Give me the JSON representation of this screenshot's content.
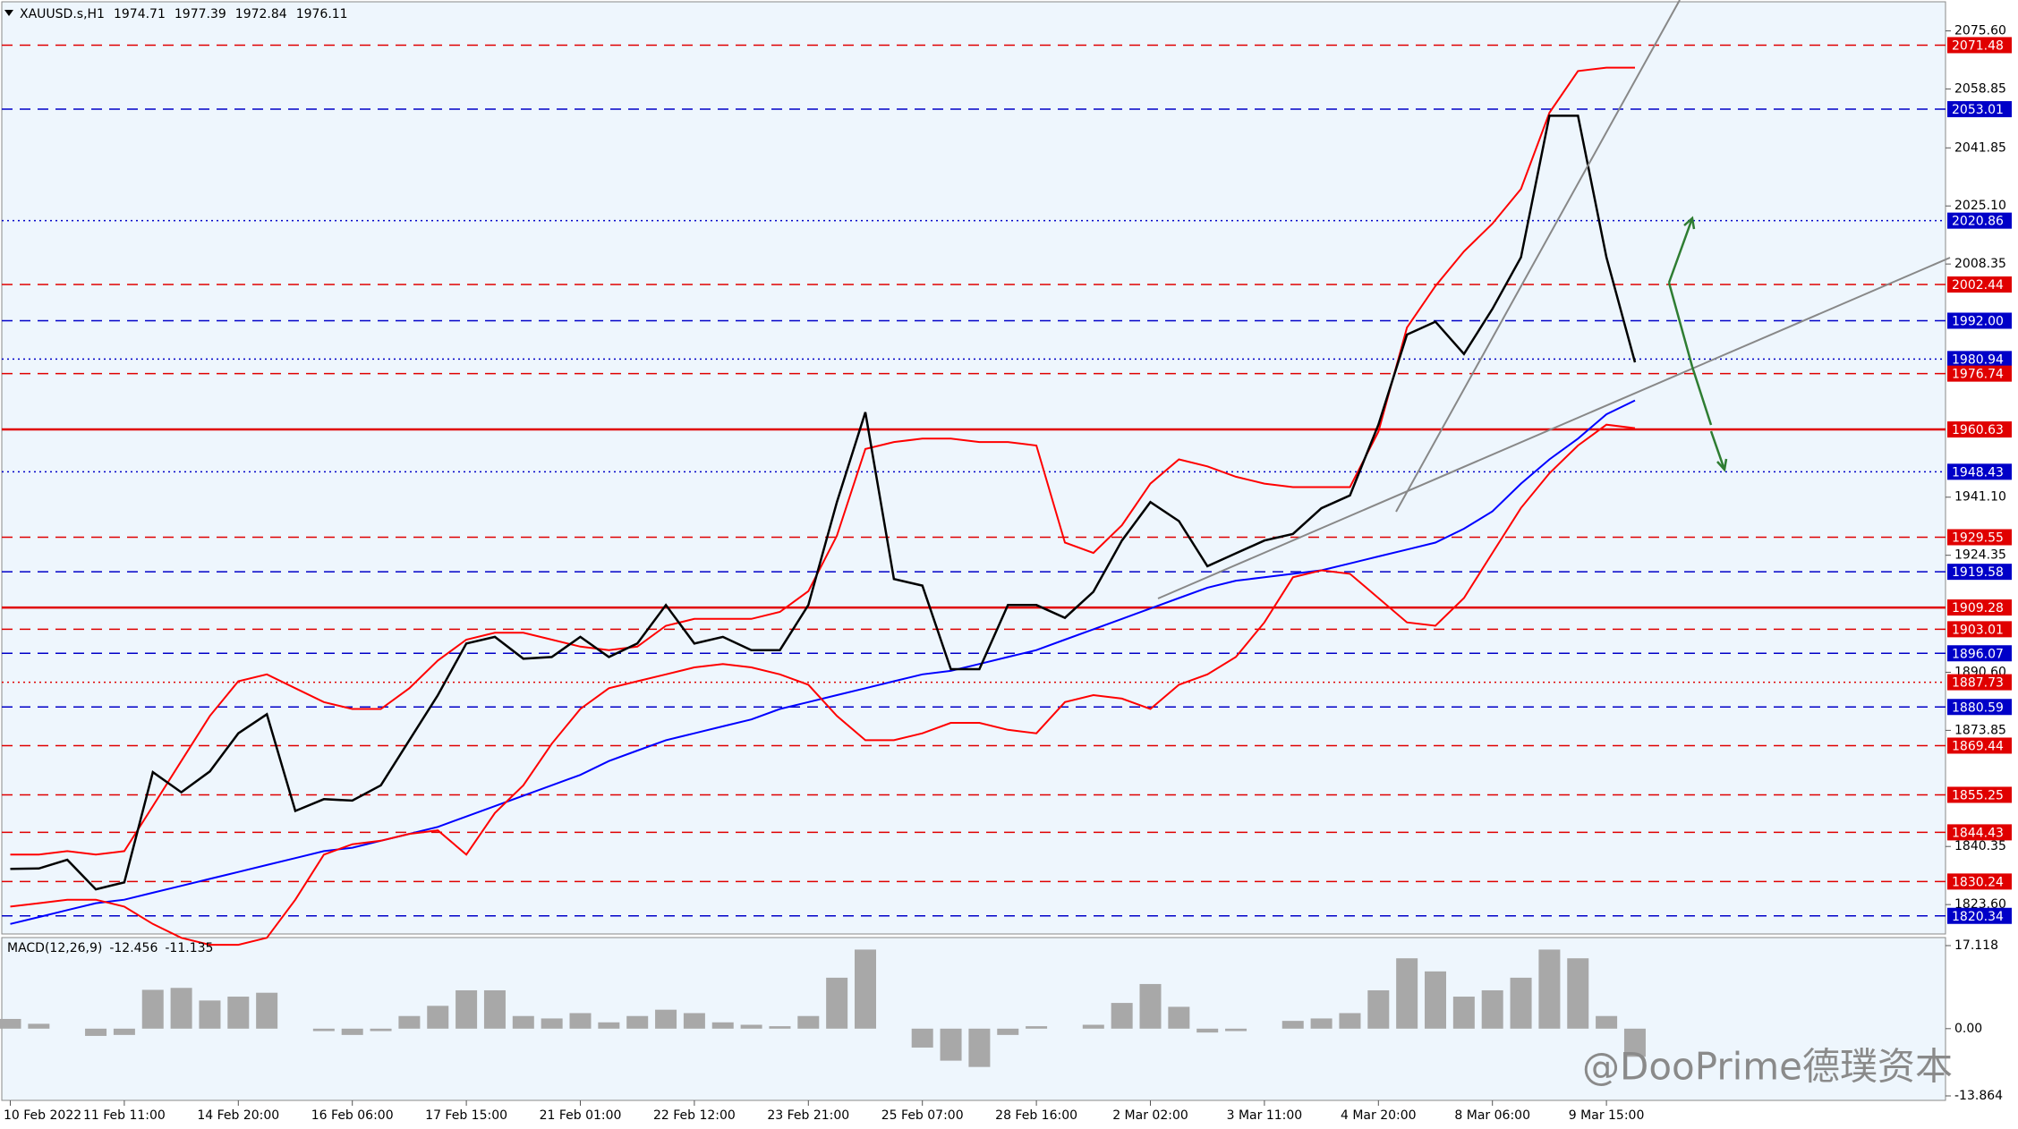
{
  "chart_data": [
    {
      "type": "line",
      "title": "XAUUSD.s,H1",
      "ohlc": [
        1974.71,
        1977.39,
        1972.84,
        1976.11
      ],
      "ylim": [
        1814.6,
        2084.5
      ],
      "yticks": [
        {
          "value": 2075.6,
          "label": "2075.60"
        },
        2058.85,
        2041.85,
        {
          "value": 2025.1,
          "label": "2025.10"
        },
        2008.35,
        {
          "value": 1941.1,
          "label": "1941.10"
        },
        1924.35,
        {
          "value": 1890.6,
          "label": "1890.60"
        },
        1873.85,
        1840.35,
        {
          "value": 1823.6,
          "label": "1823.60"
        }
      ],
      "levels": [
        {
          "value": 2071.48,
          "color": "#e00000",
          "style": "dashed"
        },
        {
          "value": 2053.01,
          "color": "#0000c8",
          "style": "dashed"
        },
        {
          "value": 2020.86,
          "color": "#0000c8",
          "style": "dotted"
        },
        {
          "value": 2002.44,
          "color": "#e00000",
          "style": "dashed"
        },
        {
          "value": 1992,
          "label": "1992.00",
          "color": "#0000c8",
          "style": "dashed"
        },
        {
          "value": 1980.94,
          "color": "#0000c8",
          "style": "dotted"
        },
        {
          "value": 1976.74,
          "color": "#e00000",
          "style": "dashed"
        },
        {
          "value": 1960.63,
          "color": "#e00000",
          "style": "solid"
        },
        {
          "value": 1948.43,
          "color": "#0000c8",
          "style": "dotted"
        },
        {
          "value": 1929.55,
          "color": "#e00000",
          "style": "dashed"
        },
        {
          "value": 1919.58,
          "color": "#0000c8",
          "style": "dashed"
        },
        {
          "value": 1909.28,
          "color": "#e00000",
          "style": "solid"
        },
        {
          "value": 1903.01,
          "color": "#e00000",
          "style": "dashed"
        },
        {
          "value": 1896.07,
          "color": "#0000c8",
          "style": "dashed"
        },
        {
          "value": 1887.73,
          "color": "#e00000",
          "style": "dotted"
        },
        {
          "value": 1880.59,
          "color": "#0000c8",
          "style": "dashed"
        },
        {
          "value": 1869.44,
          "color": "#e00000",
          "style": "dashed"
        },
        {
          "value": 1855.25,
          "color": "#e00000",
          "style": "dashed"
        },
        {
          "value": 1844.43,
          "color": "#e00000",
          "style": "dashed"
        },
        {
          "value": 1830.24,
          "color": "#e00000",
          "style": "dashed"
        },
        {
          "value": 1820.34,
          "color": "#0000c8",
          "style": "dashed"
        }
      ],
      "series": [
        {
          "color": "#0000ff",
          "values": [
            1818,
            1820,
            1822,
            1824,
            1825,
            1827,
            1829,
            1831,
            1833,
            1835,
            1837,
            1839,
            1840,
            1842,
            1844,
            1846,
            1849,
            1852,
            1855,
            1858,
            1861,
            1865,
            1868,
            1871,
            1873,
            1875,
            1877,
            1880,
            1882,
            1884,
            1886,
            1888,
            1890,
            1891,
            1893,
            1895,
            1897,
            1900,
            1903,
            1906,
            1909,
            1912,
            1915,
            1917,
            1918,
            1919,
            1920,
            1922,
            1924,
            1926,
            1928,
            1932,
            1937,
            1945,
            1952,
            1958,
            1965,
            1969
          ]
        },
        {
          "color": "#ff0000",
          "values": [
            1838,
            1838,
            1839,
            1838,
            1839,
            1852,
            1865,
            1878,
            1888,
            1890,
            1886,
            1882,
            1880,
            1880,
            1886,
            1894,
            1900,
            1902,
            1902,
            1900,
            1898,
            1897,
            1898,
            1904,
            1906,
            1906,
            1906,
            1908,
            1914,
            1930,
            1955,
            1957,
            1958,
            1958,
            1957,
            1957,
            1956,
            1928,
            1925,
            1933,
            1945,
            1952,
            1950,
            1947,
            1945,
            1944,
            1944,
            1944,
            1960,
            1990,
            2002,
            2012,
            2020,
            2030,
            2052,
            2064,
            2065,
            2065
          ]
        },
        {
          "color": "#ff0000",
          "values": [
            1823,
            1824,
            1825,
            1825,
            1823,
            1818,
            1814,
            1812,
            1812,
            1814,
            1825,
            1838,
            1841,
            1842,
            1844,
            1845,
            1838,
            1850,
            1858,
            1870,
            1880,
            1886,
            1888,
            1890,
            1892,
            1893,
            1892,
            1890,
            1887,
            1878,
            1871,
            1871,
            1873,
            1876,
            1876,
            1874,
            1873,
            1882,
            1884,
            1883,
            1880,
            1887,
            1890,
            1895,
            1905,
            1918,
            1920,
            1919,
            1912,
            1905,
            1904,
            1912,
            1925,
            1938,
            1948,
            1956,
            1962,
            1961
          ]
        },
        {
          "color": "#000000",
          "values": [
            1833.9,
            1834,
            1836.5,
            1828,
            1830,
            1861.8,
            1856,
            1862,
            1873,
            1878.5,
            1850.6,
            1854,
            1853.6,
            1858,
            1871,
            1884,
            1898.9,
            1900.8,
            1894.5,
            1895,
            1900.8,
            1895,
            1898.9,
            1910,
            1898.9,
            1900.8,
            1897,
            1897,
            1910,
            1939.7,
            1965.6,
            1917.5,
            1915.6,
            1891.5,
            1891.5,
            1910,
            1910,
            1906.3,
            1913.8,
            1928.6,
            1939.7,
            1934.2,
            1921.2,
            1924.9,
            1928.6,
            1930.5,
            1937.9,
            1941.6,
            1962,
            1988,
            1991.7,
            1982.4,
            1995.4,
            2010.3,
            2051.1,
            2051.1,
            2010.3,
            1980
          ]
        }
      ]
    },
    {
      "type": "bar",
      "title": "MACD(12,26,9)",
      "indicator_values": [
        -12.456,
        -11.135
      ],
      "color": "#a8a8a8",
      "ylim": [
        -13.864,
        17.118
      ],
      "yticks": [
        17.118,
        {
          "value": 0,
          "label": "0.00"
        },
        -13.864
      ],
      "categories": [
        "10 Feb 2022",
        null,
        null,
        null,
        "11 Feb 11:00",
        null,
        null,
        null,
        "14 Feb 20:00",
        null,
        null,
        null,
        "16 Feb 06:00",
        null,
        null,
        null,
        "17 Feb 15:00",
        null,
        null,
        null,
        "21 Feb 01:00",
        null,
        null,
        null,
        "22 Feb 12:00",
        null,
        null,
        null,
        "23 Feb 21:00",
        null,
        null,
        null,
        "25 Feb 07:00",
        null,
        null,
        null,
        "28 Feb 16:00",
        null,
        null,
        null,
        "2 Mar 02:00",
        null,
        null,
        null,
        "3 Mar 11:00",
        null,
        null,
        null,
        "4 Mar 20:00",
        null,
        null,
        null,
        "8 Mar 06:00",
        null,
        null,
        null,
        "9 Mar 15:00",
        null
      ],
      "values": [
        2,
        1,
        0,
        -1.5,
        -1.3,
        8,
        8.4,
        5.8,
        6.6,
        7.4,
        0,
        -0.5,
        -1.3,
        -0.5,
        2.6,
        4.7,
        7.9,
        7.9,
        2.6,
        2.1,
        3.2,
        1.3,
        2.6,
        3.9,
        3.2,
        1.3,
        0.8,
        0.5,
        2.6,
        10.5,
        16.3,
        0,
        -3.9,
        -6.6,
        -7.9,
        -1.3,
        0.5,
        0,
        0.8,
        5.3,
        9.2,
        4.5,
        -0.8,
        -0.5,
        0,
        1.6,
        2.1,
        3.2,
        7.9,
        14.5,
        11.8,
        6.6,
        7.9,
        10.5,
        16.3,
        14.5,
        2.6,
        -5.8
      ]
    }
  ],
  "watermark": "@DooPrime德璞资本"
}
